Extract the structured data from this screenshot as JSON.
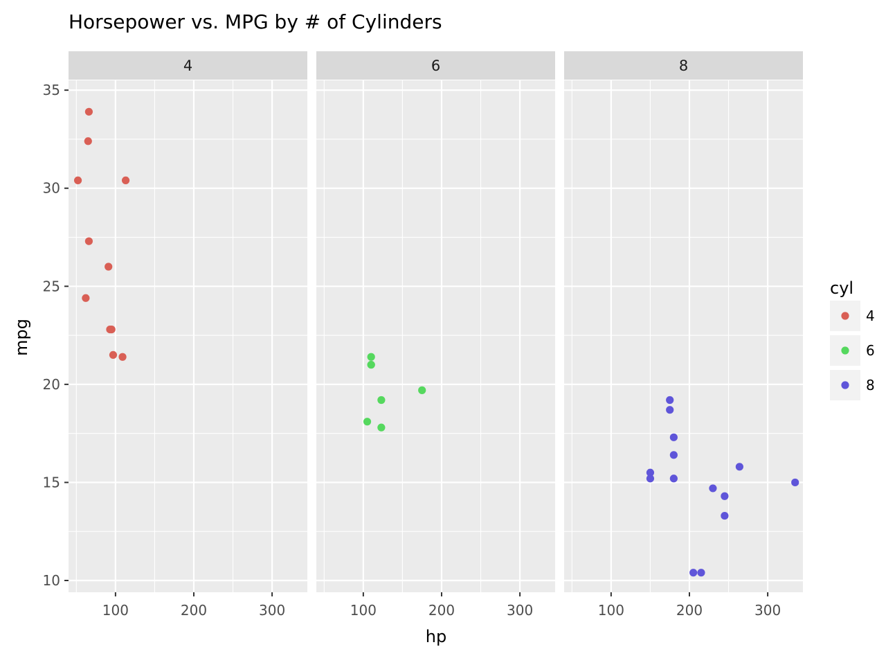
{
  "chart_data": {
    "type": "scatter",
    "title": "Horsepower vs. MPG by # of Cylinders",
    "xlabel": "hp",
    "ylabel": "mpg",
    "xlim": [
      40,
      345
    ],
    "ylim": [
      9.4,
      35.5
    ],
    "x_ticks": [
      100,
      200,
      300
    ],
    "y_ticks": [
      10,
      15,
      20,
      25,
      30,
      35
    ],
    "grid": true,
    "facet_by": "cyl",
    "legend": {
      "title": "cyl",
      "position": "right",
      "entries": [
        {
          "label": "4",
          "color": "#d95f55"
        },
        {
          "label": "6",
          "color": "#55d85e"
        },
        {
          "label": "8",
          "color": "#5f55d9"
        }
      ]
    },
    "facets": [
      {
        "label": "4",
        "color": "#d95f55",
        "points": [
          {
            "hp": 66,
            "mpg": 33.9
          },
          {
            "hp": 65,
            "mpg": 32.4
          },
          {
            "hp": 52,
            "mpg": 30.4
          },
          {
            "hp": 113,
            "mpg": 30.4
          },
          {
            "hp": 66,
            "mpg": 27.3
          },
          {
            "hp": 91,
            "mpg": 26.0
          },
          {
            "hp": 62,
            "mpg": 24.4
          },
          {
            "hp": 93,
            "mpg": 22.8
          },
          {
            "hp": 95,
            "mpg": 22.8
          },
          {
            "hp": 97,
            "mpg": 21.5
          },
          {
            "hp": 109,
            "mpg": 21.4
          }
        ]
      },
      {
        "label": "6",
        "color": "#55d85e",
        "points": [
          {
            "hp": 110,
            "mpg": 21.4
          },
          {
            "hp": 110,
            "mpg": 21.0
          },
          {
            "hp": 110,
            "mpg": 21.0
          },
          {
            "hp": 175,
            "mpg": 19.7
          },
          {
            "hp": 123,
            "mpg": 19.2
          },
          {
            "hp": 105,
            "mpg": 18.1
          },
          {
            "hp": 123,
            "mpg": 17.8
          }
        ]
      },
      {
        "label": "8",
        "color": "#5f55d9",
        "points": [
          {
            "hp": 175,
            "mpg": 19.2
          },
          {
            "hp": 175,
            "mpg": 18.7
          },
          {
            "hp": 180,
            "mpg": 17.3
          },
          {
            "hp": 180,
            "mpg": 16.4
          },
          {
            "hp": 264,
            "mpg": 15.8
          },
          {
            "hp": 150,
            "mpg": 15.5
          },
          {
            "hp": 150,
            "mpg": 15.2
          },
          {
            "hp": 180,
            "mpg": 15.2
          },
          {
            "hp": 335,
            "mpg": 15.0
          },
          {
            "hp": 230,
            "mpg": 14.7
          },
          {
            "hp": 245,
            "mpg": 14.3
          },
          {
            "hp": 245,
            "mpg": 13.3
          },
          {
            "hp": 205,
            "mpg": 10.4
          },
          {
            "hp": 215,
            "mpg": 10.4
          }
        ]
      }
    ]
  }
}
